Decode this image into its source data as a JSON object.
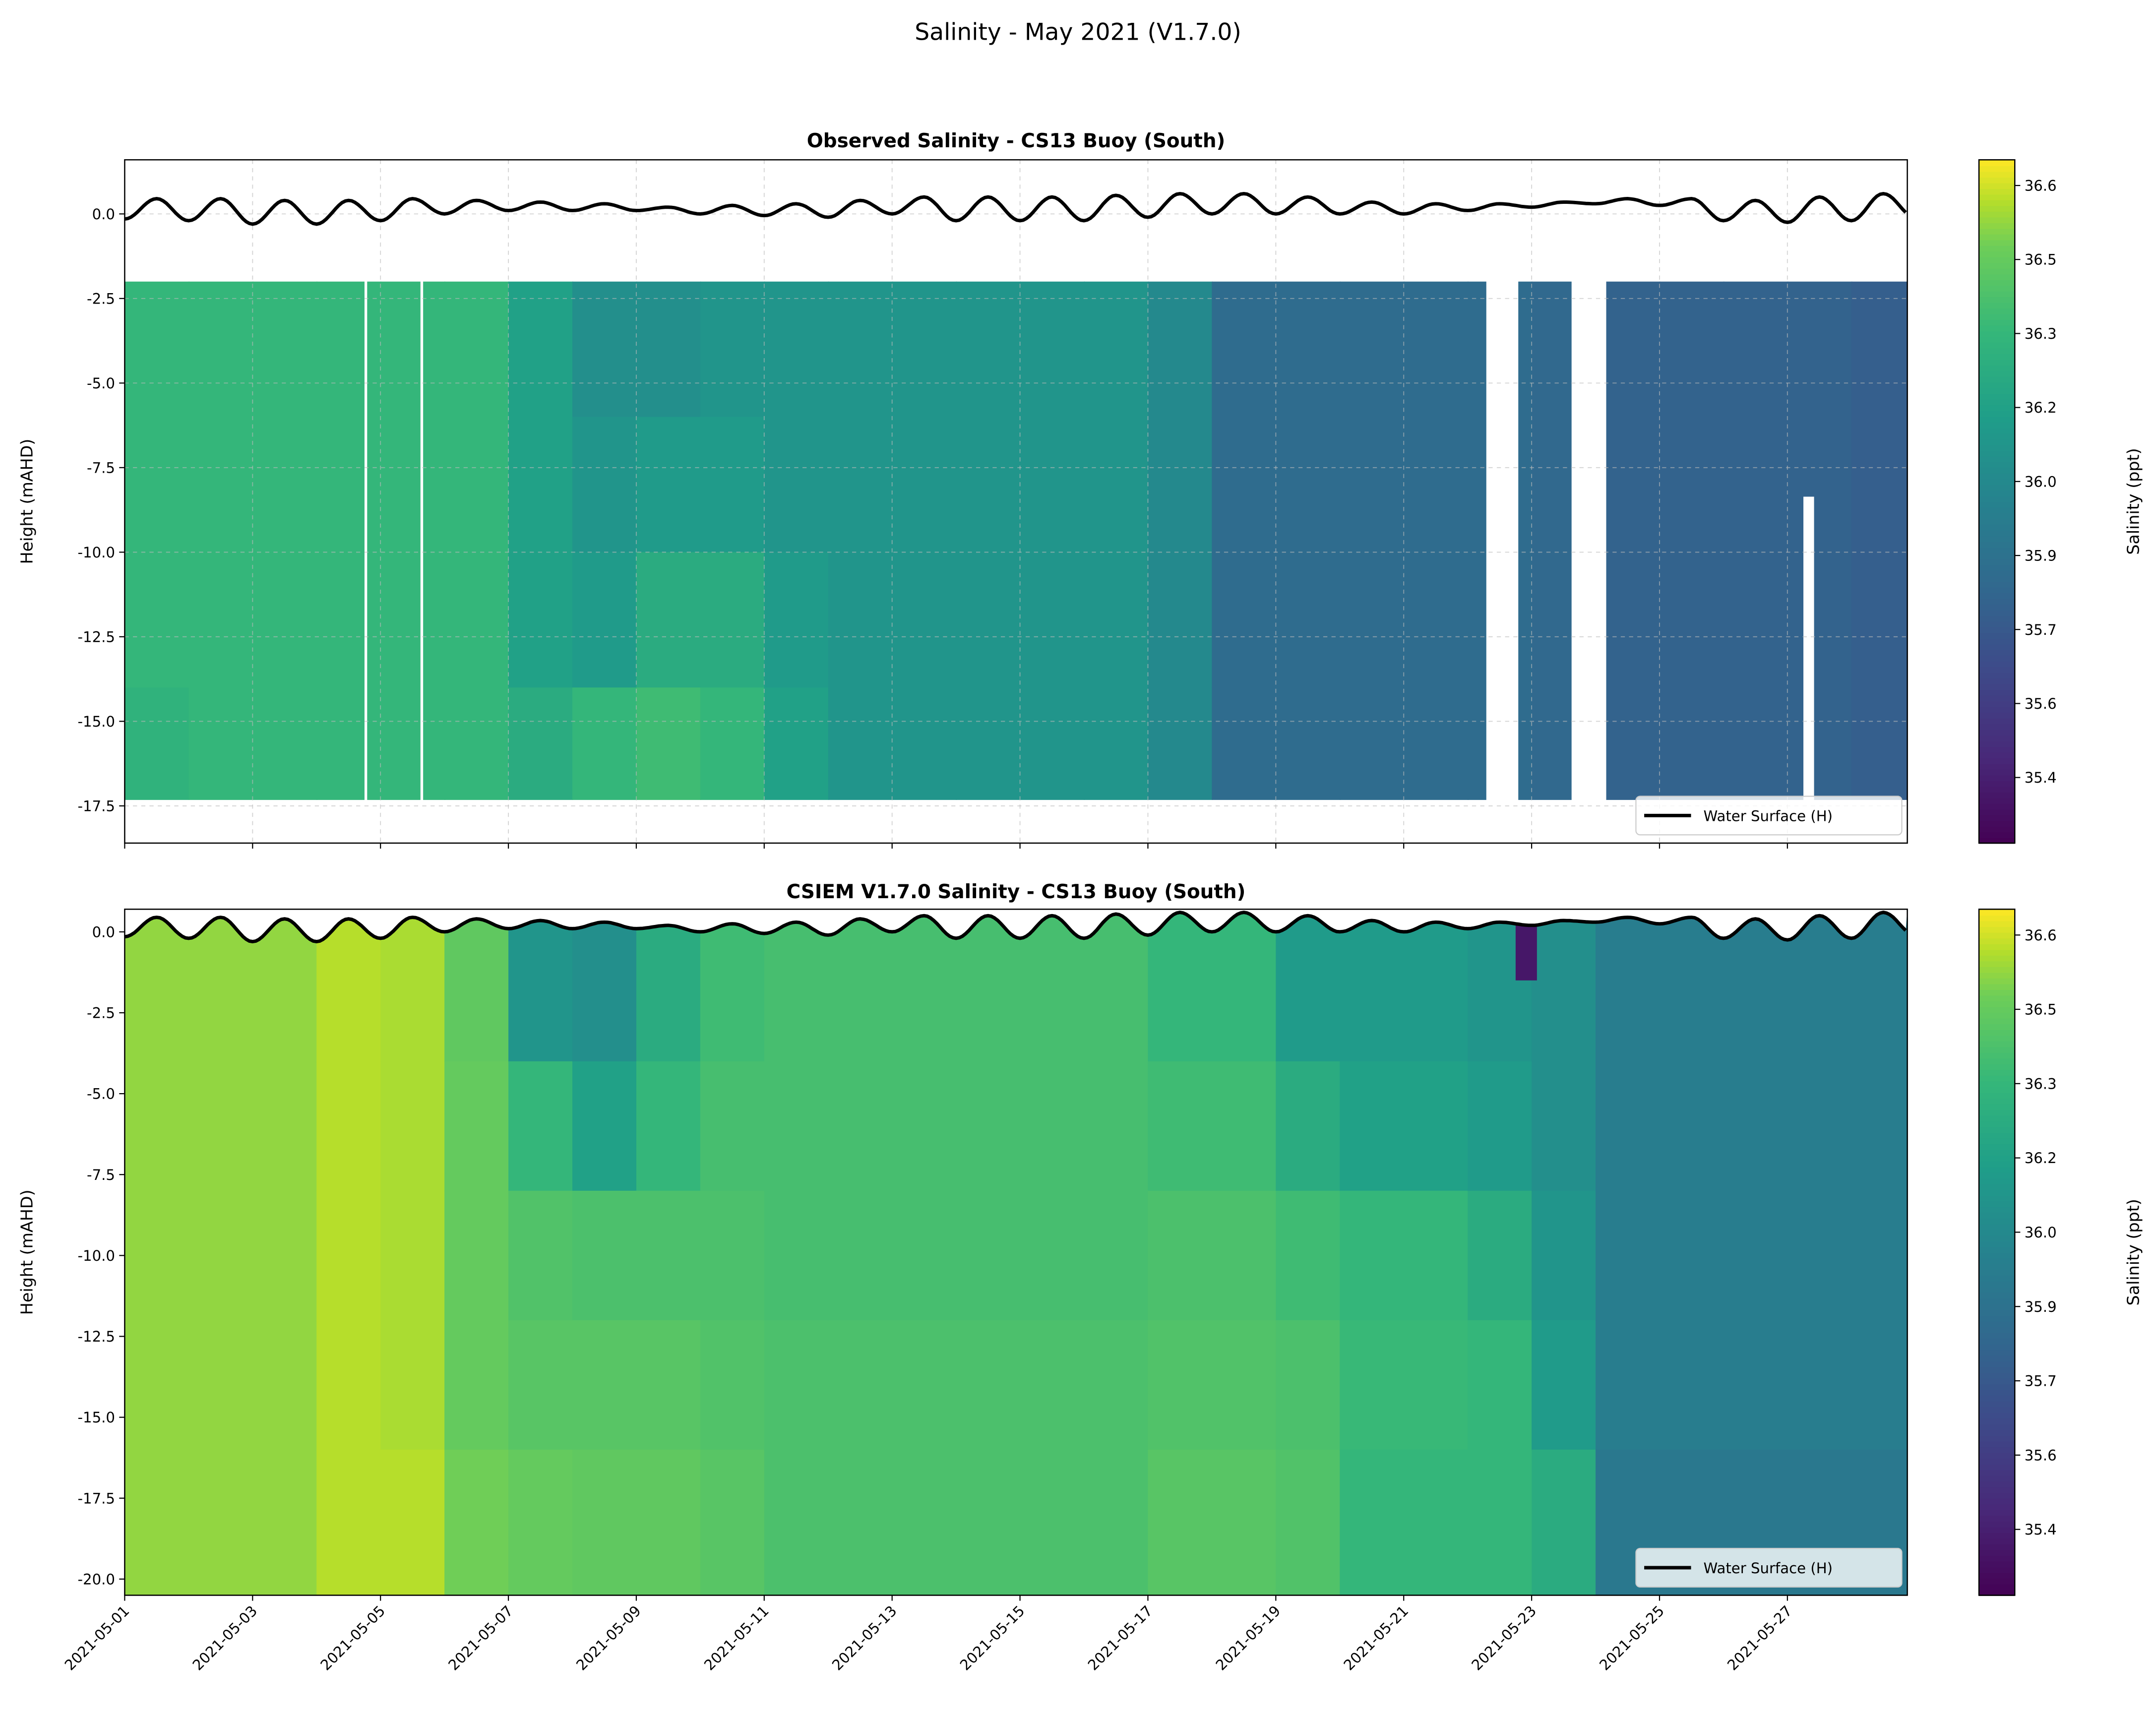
{
  "suptitle": "Salinity - May 2021 (V1.7.0)",
  "colormap": "viridis",
  "chart_data": [
    {
      "type": "heatmap",
      "title": "Observed Salinity - CS13 Buoy (South)",
      "ylabel": "Height (mAHD)",
      "xlim": [
        "2021-05-01",
        "2021-05-28 21:00"
      ],
      "ylim": [
        -18.6,
        1.6
      ],
      "yticks": [
        "0.0",
        "-2.5",
        "-5.0",
        "-7.5",
        "-10.0",
        "-12.5",
        "-15.0",
        "-17.5"
      ],
      "ytick_values": [
        0,
        -2.5,
        -5,
        -7.5,
        -10,
        -12.5,
        -15,
        -17.5
      ],
      "xticks": [
        "2021-05-01",
        "2021-05-03",
        "2021-05-05",
        "2021-05-07",
        "2021-05-09",
        "2021-05-11",
        "2021-05-13",
        "2021-05-15",
        "2021-05-17",
        "2021-05-19",
        "2021-05-21",
        "2021-05-23",
        "2021-05-25",
        "2021-05-27"
      ],
      "grid": true,
      "legend": {
        "label": "Water Surface (H)",
        "placement": "lower right"
      },
      "data_top": -2.0,
      "data_bottom": -17.3,
      "depth_bands": [
        [
          -2.0,
          -6
        ],
        [
          -6,
          -10
        ],
        [
          -10,
          -14
        ],
        [
          -14,
          -17.3
        ]
      ],
      "daily_salinity": [
        [
          36.3,
          36.3,
          36.3,
          36.28
        ],
        [
          36.3,
          36.3,
          36.3,
          36.3
        ],
        [
          36.3,
          36.3,
          36.3,
          36.3
        ],
        [
          36.3,
          36.3,
          36.3,
          36.3
        ],
        [
          36.3,
          36.3,
          36.3,
          36.3
        ],
        [
          36.3,
          36.3,
          36.3,
          36.3
        ],
        [
          36.2,
          36.2,
          36.2,
          36.25
        ],
        [
          36.05,
          36.1,
          36.15,
          36.3
        ],
        [
          36.05,
          36.15,
          36.25,
          36.35
        ],
        [
          36.1,
          36.15,
          36.25,
          36.3
        ],
        [
          36.1,
          36.1,
          36.15,
          36.2
        ],
        [
          36.1,
          36.1,
          36.1,
          36.1
        ],
        [
          36.1,
          36.1,
          36.1,
          36.1
        ],
        [
          36.1,
          36.1,
          36.1,
          36.1
        ],
        [
          36.1,
          36.1,
          36.1,
          36.1
        ],
        [
          36.1,
          36.1,
          36.1,
          36.1
        ],
        [
          36.0,
          36.0,
          36.0,
          36.0
        ],
        [
          35.85,
          35.85,
          35.85,
          35.85
        ],
        [
          35.85,
          35.85,
          35.85,
          35.85
        ],
        [
          35.85,
          35.85,
          35.85,
          35.85
        ],
        [
          35.85,
          35.85,
          35.85,
          35.85
        ],
        [
          35.85,
          35.85,
          35.85,
          35.85
        ],
        [
          35.82,
          35.82,
          35.82,
          35.82
        ],
        [
          35.78,
          35.78,
          35.78,
          35.78
        ],
        [
          35.78,
          35.78,
          35.78,
          35.78
        ],
        [
          35.78,
          35.78,
          35.78,
          35.78
        ],
        [
          35.78,
          35.78,
          35.78,
          35.78
        ],
        [
          35.75,
          35.75,
          35.75,
          35.75
        ]
      ],
      "gaps": [
        {
          "from": "2021-05-04 18:00",
          "to": "2021-05-04 19:00",
          "top": -2.0,
          "bottom": -17.3
        },
        {
          "from": "2021-05-05 15:00",
          "to": "2021-05-05 16:00",
          "top": -2.0,
          "bottom": -17.3
        },
        {
          "from": "2021-05-22 07:00",
          "to": "2021-05-22 19:00",
          "top": -2.0,
          "bottom": -17.3
        },
        {
          "from": "2021-05-23 15:00",
          "to": "2021-05-24 04:00",
          "top": -2.0,
          "bottom": -17.3
        },
        {
          "from": "2021-05-27 06:00",
          "to": "2021-05-27 10:00",
          "top": -8.4,
          "bottom": -17.3
        }
      ]
    },
    {
      "type": "heatmap",
      "title": "CSIEM V1.7.0 Salinity - CS13 Buoy (South)",
      "ylabel": "Height (mAHD)",
      "xlim": [
        "2021-05-01",
        "2021-05-28 21:00"
      ],
      "ylim": [
        -20.5,
        0.7
      ],
      "yticks": [
        "0.0",
        "-2.5",
        "-5.0",
        "-7.5",
        "-10.0",
        "-12.5",
        "-15.0",
        "-17.5",
        "-20.0"
      ],
      "ytick_values": [
        0,
        -2.5,
        -5,
        -7.5,
        -10,
        -12.5,
        -15,
        -17.5,
        -20
      ],
      "xticks": [
        "2021-05-01",
        "2021-05-03",
        "2021-05-05",
        "2021-05-07",
        "2021-05-09",
        "2021-05-11",
        "2021-05-13",
        "2021-05-15",
        "2021-05-17",
        "2021-05-19",
        "2021-05-21",
        "2021-05-23",
        "2021-05-25",
        "2021-05-27"
      ],
      "legend": {
        "label": "Water Surface (H)",
        "placement": "lower right"
      },
      "data_top": 0.7,
      "data_bottom": -20.5,
      "depth_bands": [
        [
          0.7,
          -4
        ],
        [
          -4,
          -8
        ],
        [
          -8,
          -12
        ],
        [
          -12,
          -16
        ],
        [
          -16,
          -20.5
        ]
      ],
      "daily_salinity": [
        [
          36.55,
          36.55,
          36.55,
          36.55,
          36.55
        ],
        [
          36.55,
          36.55,
          36.55,
          36.55,
          36.55
        ],
        [
          36.55,
          36.55,
          36.55,
          36.55,
          36.55
        ],
        [
          36.58,
          36.58,
          36.58,
          36.58,
          36.58
        ],
        [
          36.57,
          36.57,
          36.57,
          36.57,
          36.58
        ],
        [
          36.48,
          36.5,
          36.5,
          36.5,
          36.52
        ],
        [
          36.1,
          36.3,
          36.42,
          36.45,
          36.5
        ],
        [
          36.05,
          36.2,
          36.4,
          36.45,
          36.48
        ],
        [
          36.25,
          36.3,
          36.4,
          36.45,
          36.48
        ],
        [
          36.35,
          36.38,
          36.4,
          36.42,
          36.45
        ],
        [
          36.38,
          36.38,
          36.38,
          36.4,
          36.4
        ],
        [
          36.38,
          36.38,
          36.38,
          36.4,
          36.4
        ],
        [
          36.38,
          36.38,
          36.38,
          36.4,
          36.4
        ],
        [
          36.38,
          36.38,
          36.38,
          36.4,
          36.4
        ],
        [
          36.38,
          36.38,
          36.38,
          36.4,
          36.4
        ],
        [
          36.38,
          36.38,
          36.38,
          36.4,
          36.4
        ],
        [
          36.3,
          36.35,
          36.4,
          36.42,
          36.45
        ],
        [
          36.3,
          36.35,
          36.4,
          36.42,
          36.45
        ],
        [
          36.15,
          36.25,
          36.35,
          36.4,
          36.42
        ],
        [
          36.15,
          36.2,
          36.3,
          36.32,
          36.3
        ],
        [
          36.15,
          36.2,
          36.3,
          36.32,
          36.3
        ],
        [
          36.1,
          36.15,
          36.25,
          36.3,
          36.3
        ],
        [
          36.05,
          36.05,
          36.1,
          36.15,
          36.25
        ],
        [
          35.95,
          35.95,
          35.95,
          35.95,
          35.93
        ],
        [
          35.95,
          35.95,
          35.95,
          35.95,
          35.93
        ],
        [
          35.95,
          35.95,
          35.95,
          35.95,
          35.93
        ],
        [
          35.95,
          35.95,
          35.95,
          35.95,
          35.93
        ],
        [
          35.95,
          35.95,
          35.95,
          35.95,
          35.93
        ]
      ],
      "anomalies": [
        {
          "from": "2021-05-22 18:00",
          "to": "2021-05-23 02:00",
          "top": 0.4,
          "bottom": -1.5,
          "salinity": 35.35
        }
      ]
    }
  ],
  "water_surface": {
    "label": "Water Surface (H)",
    "start": "2021-05-01",
    "step_hours": 12,
    "values": [
      -0.15,
      0.45,
      -0.2,
      0.45,
      -0.3,
      0.4,
      -0.3,
      0.4,
      -0.2,
      0.45,
      0.0,
      0.4,
      0.1,
      0.35,
      0.1,
      0.3,
      0.1,
      0.2,
      0.0,
      0.25,
      -0.05,
      0.3,
      -0.1,
      0.4,
      0.0,
      0.5,
      -0.2,
      0.5,
      -0.2,
      0.5,
      -0.2,
      0.55,
      -0.1,
      0.6,
      0.0,
      0.6,
      0.0,
      0.5,
      0.0,
      0.35,
      0.0,
      0.3,
      0.1,
      0.3,
      0.2,
      0.35,
      0.3,
      0.45,
      0.25,
      0.45,
      -0.2,
      0.4,
      -0.25,
      0.5,
      -0.2,
      0.6,
      -0.1,
      -0.05
    ]
  },
  "colorbar": {
    "label": "Salinity (ppt)",
    "ticks": [
      "36.6",
      "36.5",
      "36.3",
      "36.2",
      "36.0",
      "35.9",
      "35.7",
      "35.6",
      "35.4"
    ],
    "tick_values": [
      36.6,
      36.5,
      36.3,
      36.2,
      36.0,
      35.9,
      35.7,
      35.6,
      35.4
    ]
  }
}
